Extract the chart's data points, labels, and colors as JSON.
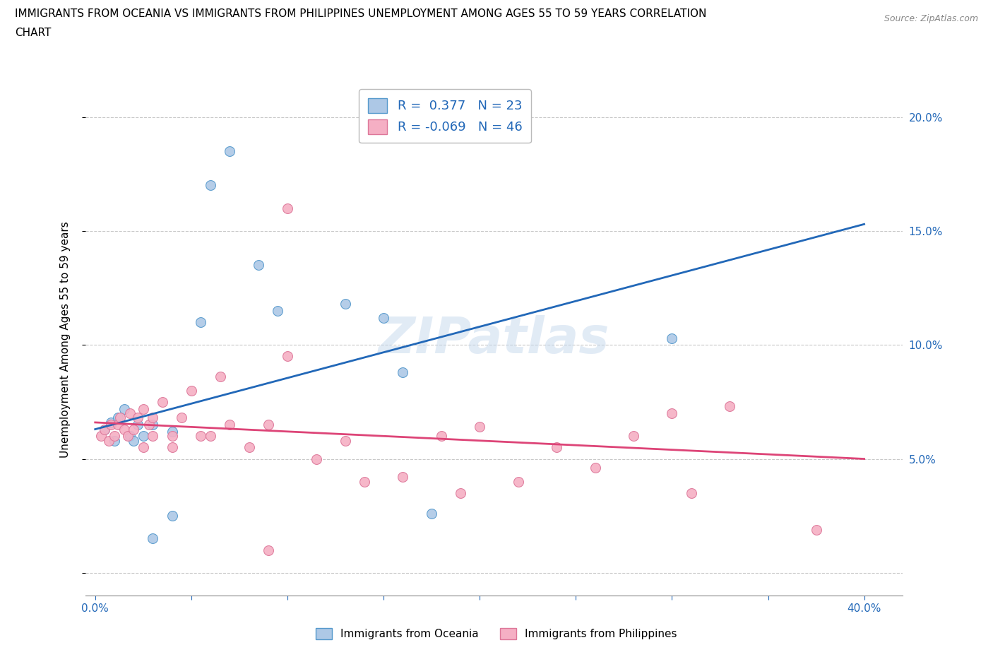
{
  "title_line1": "IMMIGRANTS FROM OCEANIA VS IMMIGRANTS FROM PHILIPPINES UNEMPLOYMENT AMONG AGES 55 TO 59 YEARS CORRELATION",
  "title_line2": "CHART",
  "source": "Source: ZipAtlas.com",
  "ylabel": "Unemployment Among Ages 55 to 59 years",
  "xlim": [
    -0.005,
    0.42
  ],
  "ylim": [
    -0.01,
    0.215
  ],
  "xtick_positions": [
    0.0,
    0.05,
    0.1,
    0.15,
    0.2,
    0.25,
    0.3,
    0.35,
    0.4
  ],
  "ytick_positions": [
    0.0,
    0.05,
    0.1,
    0.15,
    0.2
  ],
  "watermark": "ZIPatlas",
  "oceania_fill": "#adc8e6",
  "oceania_edge": "#5599cc",
  "philippines_fill": "#f5afc4",
  "philippines_edge": "#dd7799",
  "trend_blue": "#2268b8",
  "trend_pink": "#dd4477",
  "label_color": "#2268b8",
  "legend_r_oceania": "0.377",
  "legend_n_oceania": "23",
  "legend_r_philippines": "-0.069",
  "legend_n_philippines": "46",
  "oceania_x": [
    0.005,
    0.008,
    0.01,
    0.012,
    0.015,
    0.018,
    0.02,
    0.022,
    0.025,
    0.03,
    0.03,
    0.04,
    0.055,
    0.06,
    0.07,
    0.085,
    0.095,
    0.13,
    0.15,
    0.16,
    0.175,
    0.3,
    0.04
  ],
  "oceania_y": [
    0.063,
    0.066,
    0.058,
    0.068,
    0.072,
    0.06,
    0.058,
    0.065,
    0.06,
    0.065,
    0.015,
    0.062,
    0.11,
    0.17,
    0.185,
    0.135,
    0.115,
    0.118,
    0.112,
    0.088,
    0.026,
    0.103,
    0.025
  ],
  "philippines_x": [
    0.003,
    0.005,
    0.007,
    0.008,
    0.01,
    0.012,
    0.013,
    0.015,
    0.017,
    0.018,
    0.02,
    0.022,
    0.025,
    0.025,
    0.028,
    0.03,
    0.03,
    0.035,
    0.04,
    0.04,
    0.045,
    0.05,
    0.055,
    0.06,
    0.065,
    0.07,
    0.08,
    0.09,
    0.09,
    0.1,
    0.1,
    0.115,
    0.13,
    0.14,
    0.16,
    0.18,
    0.19,
    0.2,
    0.22,
    0.24,
    0.26,
    0.28,
    0.3,
    0.31,
    0.33,
    0.375
  ],
  "philippines_y": [
    0.06,
    0.063,
    0.058,
    0.065,
    0.06,
    0.065,
    0.068,
    0.063,
    0.06,
    0.07,
    0.063,
    0.068,
    0.055,
    0.072,
    0.065,
    0.06,
    0.068,
    0.075,
    0.06,
    0.055,
    0.068,
    0.08,
    0.06,
    0.06,
    0.086,
    0.065,
    0.055,
    0.01,
    0.065,
    0.095,
    0.16,
    0.05,
    0.058,
    0.04,
    0.042,
    0.06,
    0.035,
    0.064,
    0.04,
    0.055,
    0.046,
    0.06,
    0.07,
    0.035,
    0.073,
    0.019
  ],
  "trend_oceania_x0": 0.0,
  "trend_oceania_x1": 0.4,
  "trend_oceania_y0": 0.063,
  "trend_oceania_y1": 0.153,
  "trend_philippines_x0": 0.0,
  "trend_philippines_x1": 0.4,
  "trend_philippines_y0": 0.066,
  "trend_philippines_y1": 0.05,
  "marker_size": 100,
  "bg_color": "#ffffff",
  "grid_color": "#c8c8c8"
}
